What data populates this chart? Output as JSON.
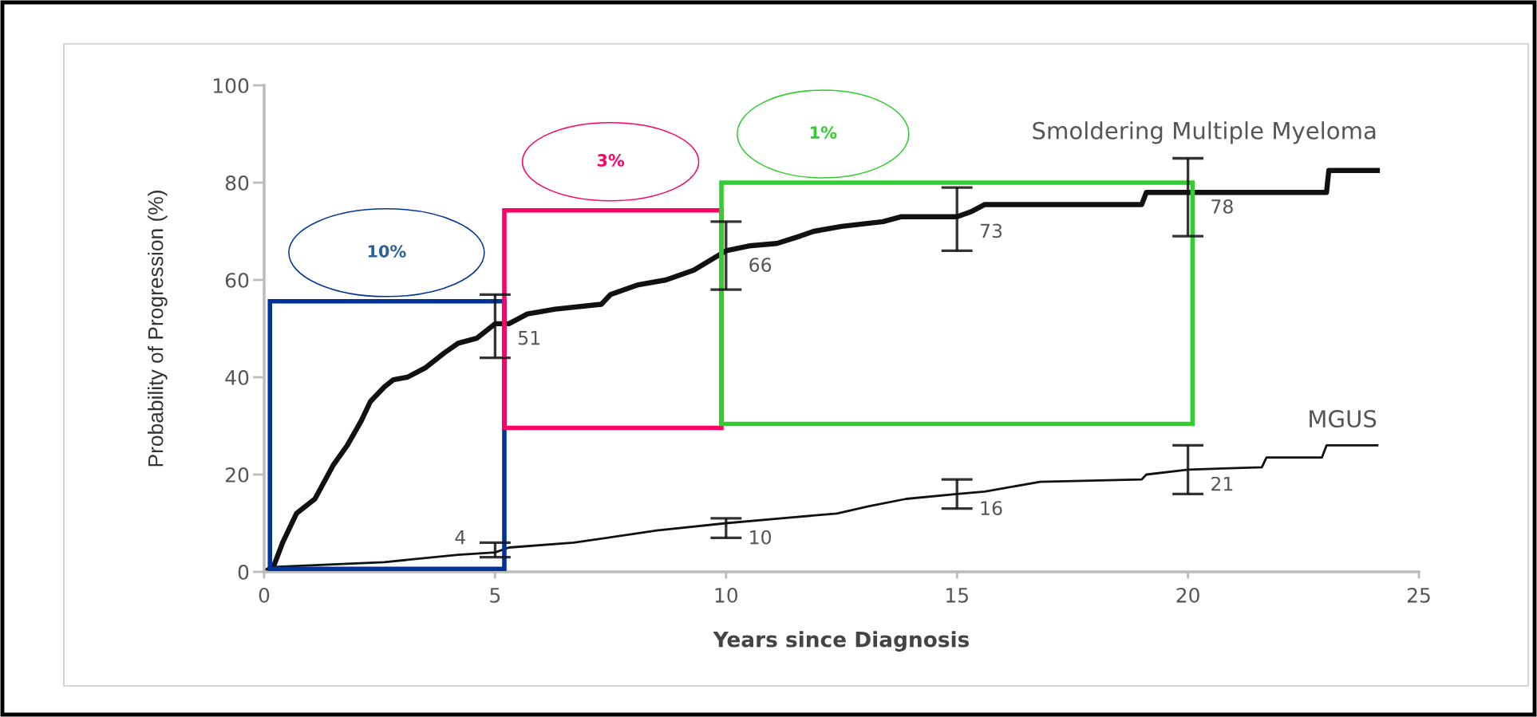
{
  "chart_data": {
    "type": "line",
    "xlabel": "Years since Diagnosis",
    "ylabel": "Probability of Progression (%)",
    "xlim": [
      0,
      25
    ],
    "xticks": [
      0,
      5,
      10,
      15,
      20,
      25
    ],
    "ylim": [
      0,
      100
    ],
    "yticks": [
      0,
      20,
      40,
      60,
      80,
      100
    ],
    "annotations": [
      "10%",
      "3%",
      "1%"
    ],
    "series": [
      {
        "name": "Smoldering Multiple Myeloma",
        "color": "#111111",
        "x": [
          0,
          0.2,
          0.4,
          0.7,
          1.1,
          1.5,
          1.8,
          2.1,
          2.3,
          2.6,
          2.8,
          3.1,
          3.5,
          3.9,
          4.2,
          4.6,
          5,
          5.3,
          5.7,
          6.3,
          7.3,
          7.5,
          8.1,
          8.7,
          9.3,
          10,
          10.5,
          11.1,
          11.6,
          11.9,
          12.5,
          13.4,
          13.8,
          15,
          15.3,
          15.6,
          19.0,
          19.1,
          20,
          23.0,
          23.05,
          24.1
        ],
        "values": [
          0,
          1,
          6,
          12,
          15,
          22,
          26,
          31,
          35,
          38,
          39.5,
          40,
          42,
          45,
          47,
          48,
          51,
          51,
          53,
          54,
          55,
          57,
          59,
          60,
          62,
          66,
          67,
          67.5,
          69,
          70,
          71,
          72,
          73,
          73,
          74,
          75.5,
          75.5,
          78,
          78,
          78,
          82.5,
          82.5
        ],
        "errors": [
          null,
          null,
          null,
          null,
          null,
          null,
          null,
          null,
          null,
          null,
          null,
          null,
          null,
          null,
          null,
          null,
          [
            44,
            57
          ],
          null,
          null,
          null,
          null,
          null,
          null,
          null,
          null,
          [
            58,
            72
          ],
          null,
          null,
          null,
          null,
          null,
          null,
          null,
          [
            66,
            79
          ],
          null,
          null,
          null,
          null,
          [
            69,
            85
          ],
          null,
          null,
          null
        ],
        "value_labels": [
          null,
          null,
          null,
          null,
          null,
          null,
          null,
          null,
          null,
          null,
          null,
          null,
          null,
          null,
          null,
          null,
          "51",
          null,
          null,
          null,
          null,
          null,
          null,
          null,
          null,
          "66",
          null,
          null,
          null,
          null,
          null,
          null,
          null,
          "73",
          null,
          null,
          null,
          null,
          "78",
          null,
          null,
          null
        ]
      },
      {
        "name": "MGUS",
        "color": "#111111",
        "x": [
          0,
          0.2,
          2.6,
          4.2,
          5,
          5.3,
          6.7,
          8.5,
          10,
          11.2,
          12.4,
          13.1,
          13.9,
          15,
          15.6,
          16.8,
          19.0,
          19.1,
          20,
          21.6,
          21.7,
          22.9,
          23.0,
          24.1
        ],
        "values": [
          0,
          1,
          2,
          3.5,
          4,
          5,
          6,
          8.5,
          10,
          11,
          12,
          13.5,
          15,
          16,
          16.5,
          18.5,
          19,
          20,
          21,
          21.5,
          23.5,
          23.5,
          26,
          26
        ],
        "errors": [
          null,
          null,
          null,
          null,
          [
            3,
            6
          ],
          null,
          null,
          null,
          [
            7,
            11
          ],
          null,
          null,
          null,
          null,
          [
            13,
            19
          ],
          null,
          null,
          null,
          null,
          [
            16,
            26
          ],
          null,
          null,
          null,
          null,
          null
        ],
        "value_labels": [
          null,
          null,
          null,
          null,
          "4",
          null,
          null,
          null,
          "10",
          null,
          null,
          null,
          null,
          "16",
          null,
          null,
          null,
          null,
          "21",
          null,
          null,
          null,
          null,
          null
        ]
      }
    ]
  }
}
